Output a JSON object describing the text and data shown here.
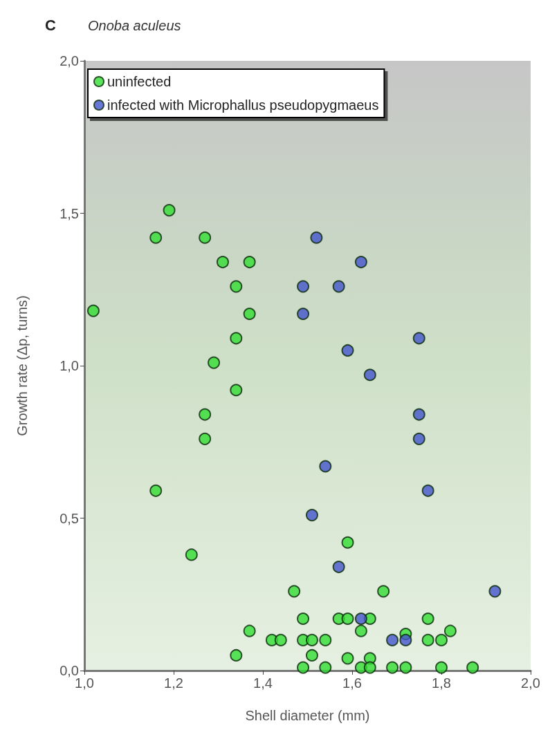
{
  "chart_data": {
    "type": "scatter",
    "title": "C",
    "subtitle": "Onoba aculeus",
    "xlabel": "Shell diameter (mm)",
    "ylabel": "Growth rate (Δp, turns)",
    "xlim": [
      1.0,
      2.0
    ],
    "xticks": [
      {
        "value": 1.0,
        "label": "1,0"
      },
      {
        "value": 1.2,
        "label": "1,2"
      },
      {
        "value": 1.4,
        "label": "1,4"
      },
      {
        "value": 1.6,
        "label": "1,6"
      },
      {
        "value": 1.8,
        "label": "1,8"
      },
      {
        "value": 2.0,
        "label": "2,0"
      }
    ],
    "ylim": [
      0,
      2.0
    ],
    "yticks": [
      {
        "value": 0,
        "label": "0,0"
      },
      {
        "value": 0.5,
        "label": "0,5"
      },
      {
        "value": 1.0,
        "label": "1,0"
      },
      {
        "value": 1.5,
        "label": "1,5"
      },
      {
        "value": 2.0,
        "label": "2,0"
      }
    ],
    "grid": false,
    "legend": "top left",
    "marker": "circle",
    "series": [
      {
        "name": "uninfected",
        "color": "#33dd33",
        "x": [
          1.02,
          1.16,
          1.19,
          1.27,
          1.31,
          1.37,
          1.34,
          1.37,
          1.34,
          1.29,
          1.34,
          1.27,
          1.27,
          1.16,
          1.24,
          1.47,
          1.49,
          1.37,
          1.34,
          1.42,
          1.44,
          1.59,
          1.67,
          1.57,
          1.59,
          1.64,
          1.77,
          1.62,
          1.82,
          1.72,
          1.49,
          1.51,
          1.54,
          1.77,
          1.8,
          1.51,
          1.59,
          1.64,
          1.49,
          1.54,
          1.62,
          1.64,
          1.69,
          1.72,
          1.8,
          1.87
        ],
        "values": [
          1.18,
          1.42,
          1.51,
          1.42,
          1.34,
          1.34,
          1.26,
          1.17,
          1.09,
          1.01,
          0.92,
          0.84,
          0.76,
          0.59,
          0.38,
          0.26,
          0.17,
          0.13,
          0.05,
          0.1,
          0.1,
          0.42,
          0.26,
          0.17,
          0.17,
          0.17,
          0.17,
          0.13,
          0.13,
          0.12,
          0.1,
          0.1,
          0.1,
          0.1,
          0.1,
          0.05,
          0.04,
          0.04,
          0.01,
          0.01,
          0.01,
          0.01,
          0.01,
          0.01,
          0.01,
          0.01
        ]
      },
      {
        "name": "infected with Microphallus pseudopygmaeus",
        "color": "#4455cc",
        "x": [
          1.52,
          1.62,
          1.49,
          1.57,
          1.49,
          1.75,
          1.59,
          1.64,
          1.75,
          1.75,
          1.54,
          1.77,
          1.51,
          1.57,
          1.92,
          1.62,
          1.69,
          1.72
        ],
        "values": [
          1.42,
          1.34,
          1.26,
          1.26,
          1.17,
          1.09,
          1.05,
          0.97,
          0.84,
          0.76,
          0.67,
          0.59,
          0.51,
          0.34,
          0.26,
          0.17,
          0.1,
          0.1
        ]
      }
    ]
  }
}
